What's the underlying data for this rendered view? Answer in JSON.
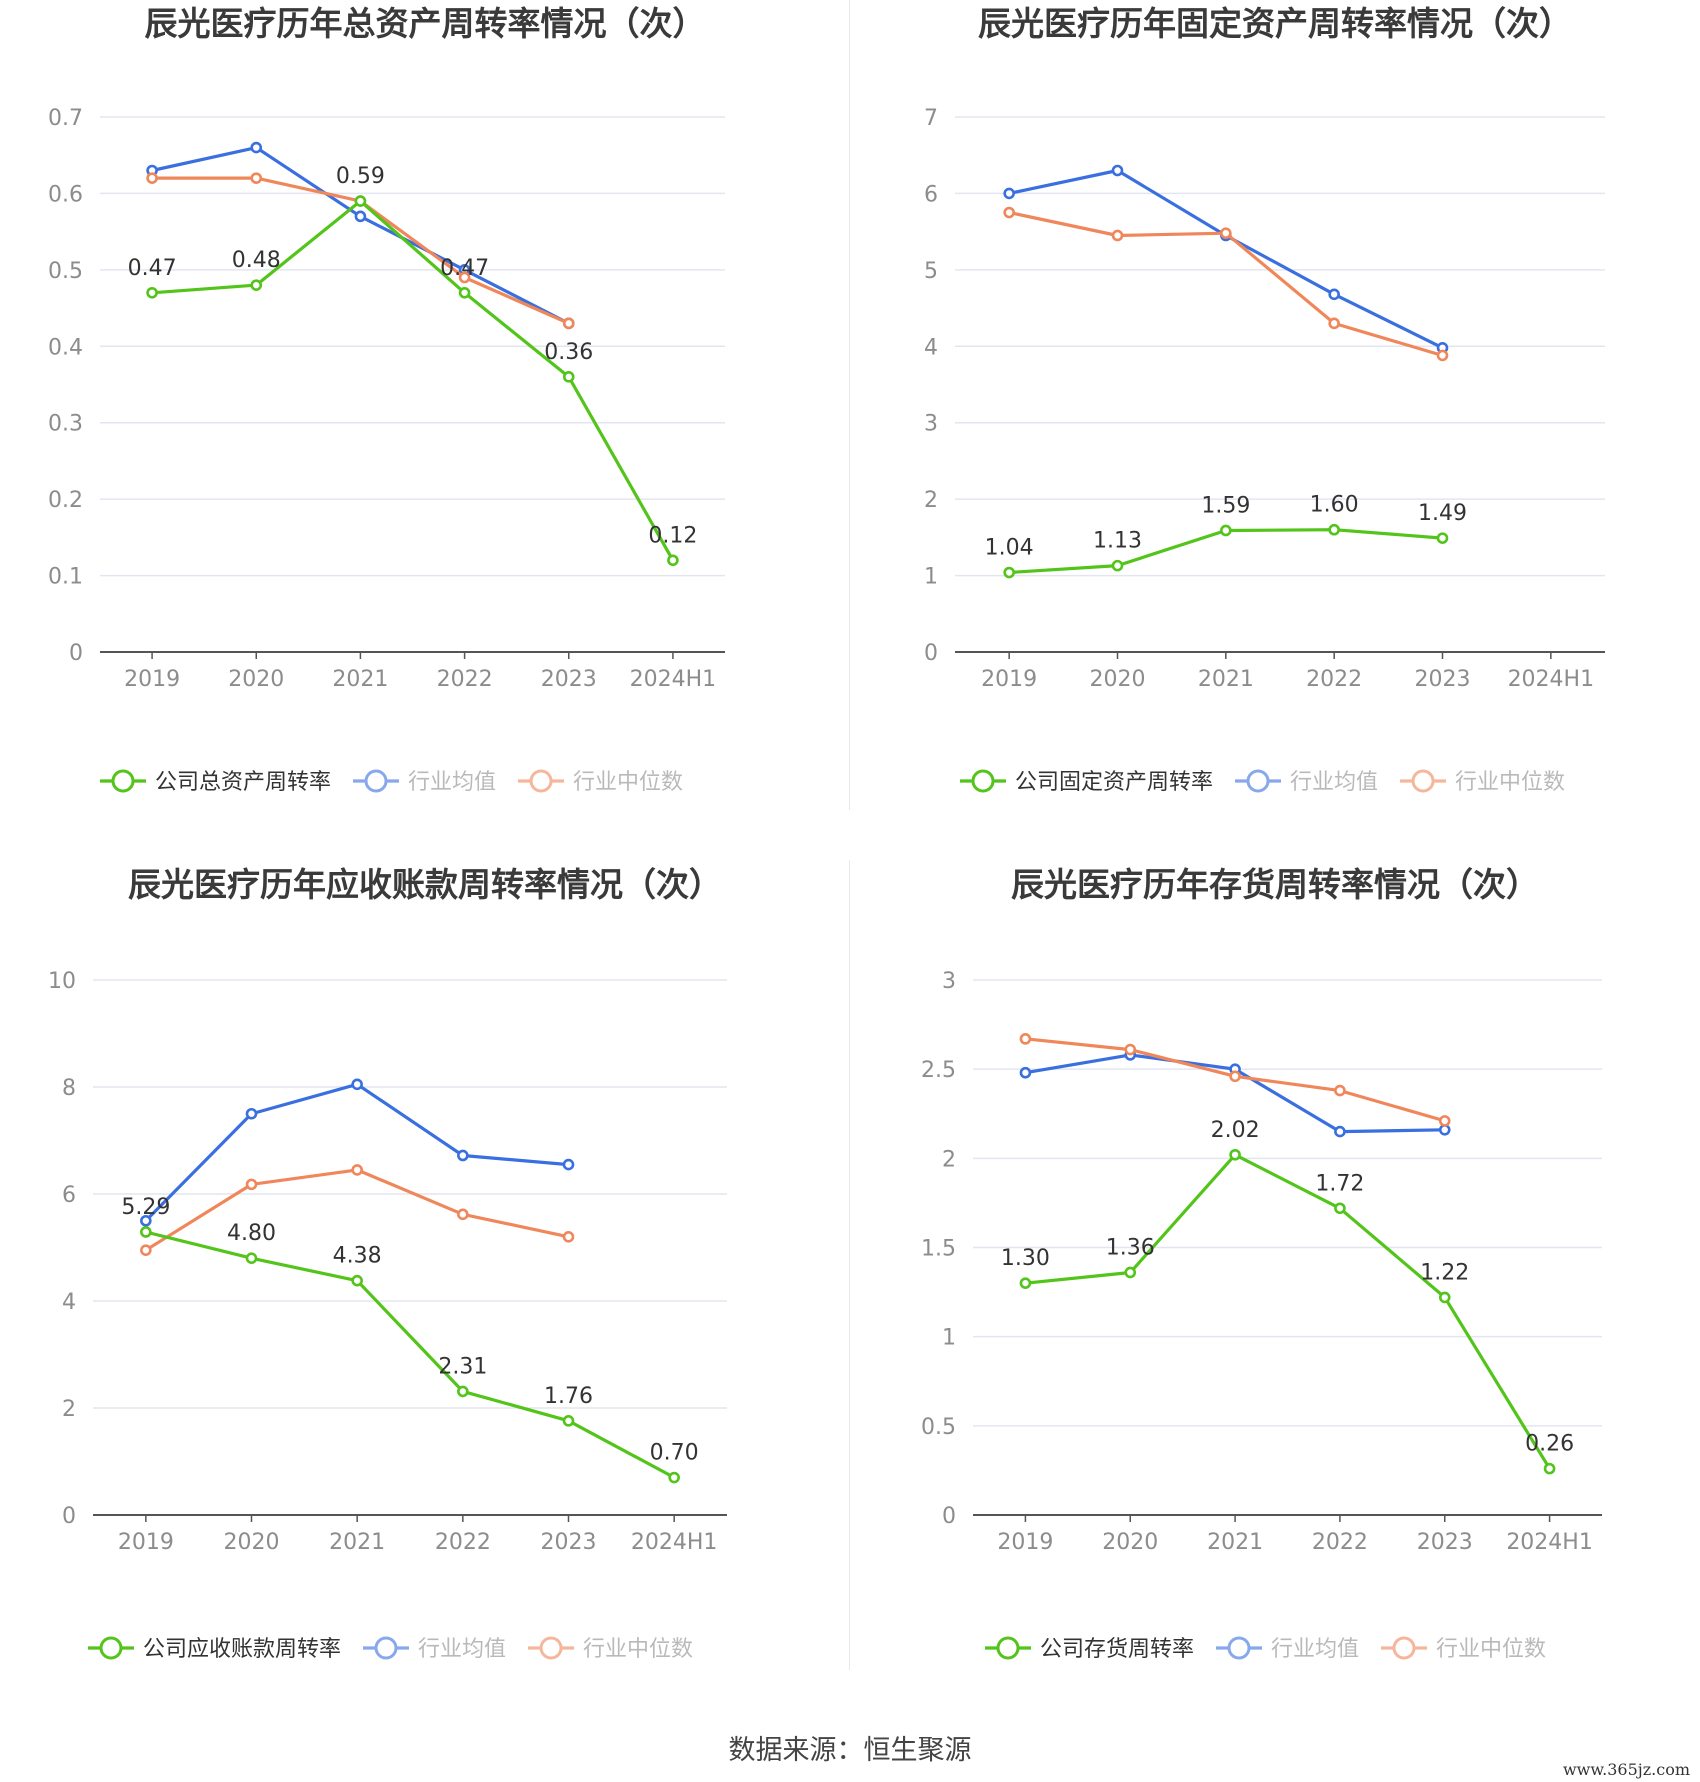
{
  "legend": {
    "avg": "行业均值",
    "median": "行业中位数"
  },
  "colors": {
    "company": "#52c41a",
    "avg": "#3a6fe0",
    "median": "#f0875a",
    "grid": "#e3e6f0",
    "axis": "#555555",
    "tick": "#8c8c8c",
    "title": "#3a3a3a"
  },
  "footer": {
    "source": "数据来源：恒生聚源",
    "watermark": "www.365jz.com"
  },
  "chart_data": [
    {
      "type": "line",
      "title": "辰光医疗历年总资产周转率情况（次）",
      "categories": [
        "2019",
        "2020",
        "2021",
        "2022",
        "2023",
        "2024H1"
      ],
      "ylim": [
        0,
        0.7
      ],
      "yticks": [
        0,
        0.1,
        0.2,
        0.3,
        0.4,
        0.5,
        0.6,
        0.7
      ],
      "yticks_labels": [
        "0",
        "0.1",
        "0.2",
        "0.3",
        "0.4",
        "0.5",
        "0.6",
        "0.7"
      ],
      "series": [
        {
          "name": "公司总资产周转率",
          "role": "company",
          "values": [
            0.47,
            0.48,
            0.59,
            0.47,
            0.36,
            0.12
          ],
          "labels": [
            "0.47",
            "0.48",
            "0.59",
            "0.47",
            "0.36",
            "0.12"
          ]
        },
        {
          "name": "行业均值",
          "role": "avg",
          "values": [
            0.63,
            0.66,
            0.57,
            0.5,
            0.43,
            null
          ]
        },
        {
          "name": "行业中位数",
          "role": "median",
          "values": [
            0.62,
            0.62,
            0.59,
            0.49,
            0.43,
            null
          ]
        }
      ],
      "legend_position": "bottom",
      "grid": true
    },
    {
      "type": "line",
      "title": "辰光医疗历年固定资产周转率情况（次）",
      "categories": [
        "2019",
        "2020",
        "2021",
        "2022",
        "2023",
        "2024H1"
      ],
      "ylim": [
        0,
        7
      ],
      "yticks": [
        0,
        1,
        2,
        3,
        4,
        5,
        6,
        7
      ],
      "yticks_labels": [
        "0",
        "1",
        "2",
        "3",
        "4",
        "5",
        "6",
        "7"
      ],
      "series": [
        {
          "name": "公司固定资产周转率",
          "role": "company",
          "values": [
            1.04,
            1.13,
            1.59,
            1.6,
            1.49,
            null
          ],
          "labels": [
            "1.04",
            "1.13",
            "1.59",
            "1.60",
            "1.49",
            ""
          ]
        },
        {
          "name": "行业均值",
          "role": "avg",
          "values": [
            6.0,
            6.3,
            5.45,
            4.68,
            3.98,
            null
          ]
        },
        {
          "name": "行业中位数",
          "role": "median",
          "values": [
            5.75,
            5.45,
            5.48,
            4.3,
            3.88,
            null
          ]
        }
      ],
      "legend_position": "bottom",
      "grid": true
    },
    {
      "type": "line",
      "title": "辰光医疗历年应收账款周转率情况（次）",
      "categories": [
        "2019",
        "2020",
        "2021",
        "2022",
        "2023",
        "2024H1"
      ],
      "ylim": [
        0,
        10
      ],
      "yticks": [
        0,
        2,
        4,
        6,
        8,
        10
      ],
      "yticks_labels": [
        "0",
        "2",
        "4",
        "6",
        "8",
        "10"
      ],
      "series": [
        {
          "name": "公司应收账款周转率",
          "role": "company",
          "values": [
            5.29,
            4.8,
            4.38,
            2.31,
            1.76,
            0.7
          ],
          "labels": [
            "5.29",
            "4.80",
            "4.38",
            "2.31",
            "1.76",
            "0.70"
          ]
        },
        {
          "name": "行业均值",
          "role": "avg",
          "values": [
            5.5,
            7.5,
            8.05,
            6.72,
            6.55,
            null
          ]
        },
        {
          "name": "行业中位数",
          "role": "median",
          "values": [
            4.95,
            6.18,
            6.45,
            5.62,
            5.2,
            null
          ]
        }
      ],
      "legend_position": "bottom",
      "grid": true
    },
    {
      "type": "line",
      "title": "辰光医疗历年存货周转率情况（次）",
      "categories": [
        "2019",
        "2020",
        "2021",
        "2022",
        "2023",
        "2024H1"
      ],
      "ylim": [
        0,
        3
      ],
      "yticks": [
        0,
        0.5,
        1,
        1.5,
        2,
        2.5,
        3
      ],
      "yticks_labels": [
        "0",
        "0.5",
        "1",
        "1.5",
        "2",
        "2.5",
        "3"
      ],
      "series": [
        {
          "name": "公司存货周转率",
          "role": "company",
          "values": [
            1.3,
            1.36,
            2.02,
            1.72,
            1.22,
            0.26
          ],
          "labels": [
            "1.30",
            "1.36",
            "2.02",
            "1.72",
            "1.22",
            "0.26"
          ]
        },
        {
          "name": "行业均值",
          "role": "avg",
          "values": [
            2.48,
            2.58,
            2.5,
            2.15,
            2.16,
            null
          ]
        },
        {
          "name": "行业中位数",
          "role": "median",
          "values": [
            2.67,
            2.61,
            2.46,
            2.38,
            2.21,
            null
          ]
        }
      ],
      "legend_position": "bottom",
      "grid": true
    }
  ]
}
